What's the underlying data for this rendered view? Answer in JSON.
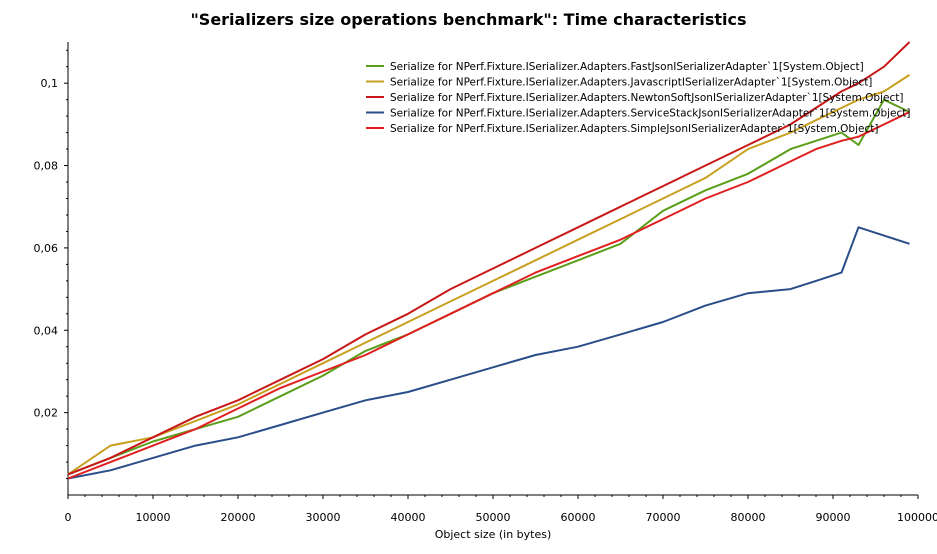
{
  "chart_data": {
    "type": "line",
    "title": "\"Serializers size operations benchmark\": Time characteristics",
    "xlabel": "Object size (in bytes)",
    "ylabel": "",
    "xlim": [
      0,
      100000
    ],
    "ylim": [
      0,
      0.11
    ],
    "x_ticks": [
      0,
      10000,
      20000,
      30000,
      40000,
      50000,
      60000,
      70000,
      80000,
      90000,
      100000
    ],
    "x_tick_labels": [
      "0",
      "10000",
      "20000",
      "30000",
      "40000",
      "50000",
      "60000",
      "70000",
      "80000",
      "90000",
      "100000"
    ],
    "y_ticks": [
      0.02,
      0.04,
      0.06,
      0.08,
      0.1
    ],
    "y_tick_labels": [
      "0,02",
      "0,04",
      "0,06",
      "0,08",
      "0,1"
    ],
    "legend_position": "top-right",
    "x": [
      0,
      5000,
      10000,
      15000,
      20000,
      25000,
      30000,
      35000,
      40000,
      45000,
      50000,
      55000,
      60000,
      65000,
      70000,
      75000,
      80000,
      85000,
      88000,
      91000,
      93000,
      96000,
      99000
    ],
    "series": [
      {
        "name": "Serialize for NPerf.Fixture.ISerializer.Adapters.FastJsonISerializerAdapter`1[System.Object]",
        "color": "#5a9e1a",
        "values": [
          0.005,
          0.009,
          0.013,
          0.016,
          0.019,
          0.024,
          0.029,
          0.035,
          0.039,
          0.044,
          0.049,
          0.053,
          0.057,
          0.061,
          0.069,
          0.074,
          0.078,
          0.084,
          0.086,
          0.088,
          0.085,
          0.096,
          0.093
        ]
      },
      {
        "name": "Serialize for NPerf.Fixture.ISerializer.Adapters.JavascriptISerializerAdapter`1[System.Object]",
        "color": "#c8a020",
        "values": [
          0.005,
          0.012,
          0.014,
          0.018,
          0.022,
          0.027,
          0.032,
          0.037,
          0.042,
          0.047,
          0.052,
          0.057,
          0.062,
          0.067,
          0.072,
          0.077,
          0.084,
          0.088,
          0.091,
          0.094,
          0.096,
          0.098,
          0.102
        ]
      },
      {
        "name": "Serialize for NPerf.Fixture.ISerializer.Adapters.NewtonSoftJsonISerializerAdapter`1[System.Object]",
        "color": "#c81818",
        "values": [
          0.005,
          0.009,
          0.014,
          0.019,
          0.023,
          0.028,
          0.033,
          0.039,
          0.044,
          0.05,
          0.055,
          0.06,
          0.065,
          0.07,
          0.075,
          0.08,
          0.085,
          0.09,
          0.094,
          0.098,
          0.1,
          0.104,
          0.11
        ]
      },
      {
        "name": "Serialize for NPerf.Fixture.ISerializer.Adapters.ServiceStackJsonISerializerAdapter`1[System.Object]",
        "color": "#2a4e8a",
        "values": [
          0.004,
          0.006,
          0.009,
          0.012,
          0.014,
          0.017,
          0.02,
          0.023,
          0.025,
          0.028,
          0.031,
          0.034,
          0.036,
          0.039,
          0.042,
          0.046,
          0.049,
          0.05,
          0.052,
          0.054,
          0.065,
          0.063,
          0.061
        ]
      },
      {
        "name": "Serialize for NPerf.Fixture.ISerializer.Adapters.SimpleJsonISerializerAdapter`1[System.Object]",
        "color": "#e02020",
        "values": [
          0.004,
          0.008,
          0.012,
          0.016,
          0.021,
          0.026,
          0.03,
          0.034,
          0.039,
          0.044,
          0.049,
          0.054,
          0.058,
          0.062,
          0.067,
          0.072,
          0.076,
          0.081,
          0.084,
          0.086,
          0.087,
          0.09,
          0.093
        ]
      }
    ]
  }
}
